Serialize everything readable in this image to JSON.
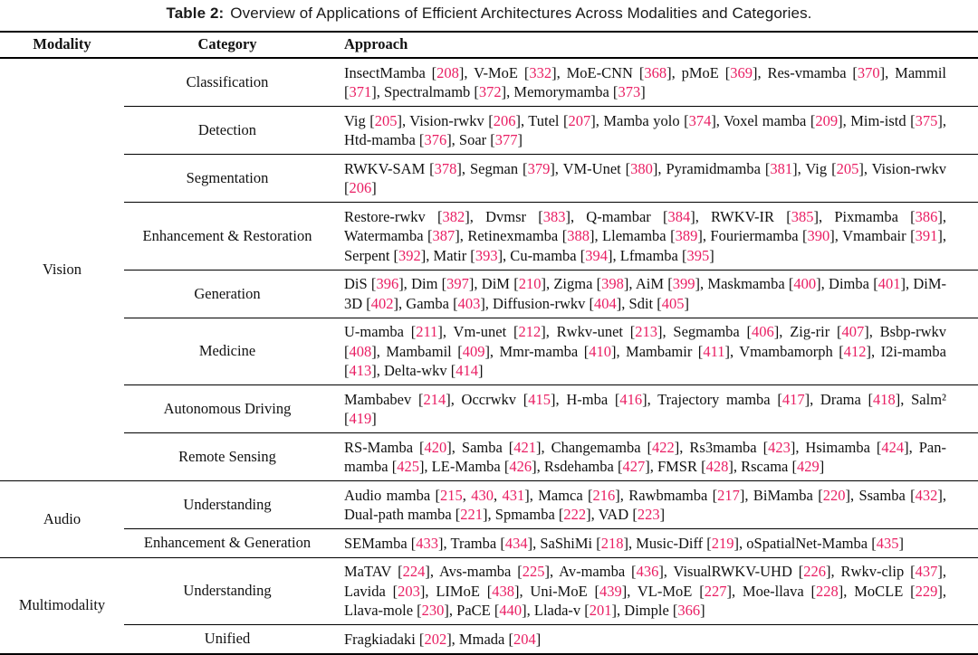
{
  "caption": {
    "label": "Table 2:",
    "text": "Overview of Applications of Efficient Architectures Across Modalities and Categories."
  },
  "colors": {
    "citation": "#E91E63",
    "rule": "#000000"
  },
  "header": {
    "modality": "Modality",
    "category": "Category",
    "approach": "Approach"
  },
  "sections": [
    {
      "modality": "Vision",
      "rows": [
        {
          "category": "Classification",
          "approach": "InsectMamba [208], V-MoE [332], MoE-CNN [368], pMoE [369], Res-vmamba [370], Mammil [371], Spectralmamb [372], Memorymamba [373]"
        },
        {
          "category": "Detection",
          "approach": "Vig [205], Vision-rwkv [206], Tutel [207], Mamba yolo [374], Voxel mamba [209], Mim-istd [375], Htd-mamba [376], Soar [377]"
        },
        {
          "category": "Segmentation",
          "approach": "RWKV-SAM [378], Segman [379], VM-Unet [380], Pyramidmamba [381], Vig [205], Vision-rwkv [206]"
        },
        {
          "category": "Enhancement & Restoration",
          "approach": "Restore-rwkv [382], Dvmsr [383], Q-mambar [384], RWKV-IR [385], Pixmamba [386], Watermamba [387], Retinexmamba [388], Llemamba [389], Fouriermamba [390], Vmambair [391], Serpent [392], Matir [393], Cu-mamba [394], Lfmamba [395]"
        },
        {
          "category": "Generation",
          "approach": "DiS [396], Dim [397], DiM [210], Zigma [398], AiM [399], Maskmamba [400], Dimba [401], DiM-3D [402], Gamba [403], Diffusion-rwkv [404], Sdit [405]"
        },
        {
          "category": "Medicine",
          "approach": "U-mamba [211], Vm-unet [212], Rwkv-unet [213], Segmamba [406], Zig-rir [407], Bsbp-rwkv [408], Mambamil [409], Mmr-mamba [410], Mambamir [411], Vmambamorph [412], I2i-mamba [413], Delta-wkv [414]"
        },
        {
          "category": "Autonomous Driving",
          "approach": "Mambabev [214], Occrwkv [415], H-mba [416], Trajectory mamba [417], Drama [418], Salm² [419]"
        },
        {
          "category": "Remote Sensing",
          "approach": "RS-Mamba [420], Samba [421], Changemamba [422], Rs3mamba [423], Hsimamba [424], Pan-mamba [425], LE-Mamba [426], Rsdehamba [427], FMSR [428], Rscama [429]"
        }
      ]
    },
    {
      "modality": "Audio",
      "rows": [
        {
          "category": "Understanding",
          "approach": "Audio mamba [215, 430, 431], Mamca [216], Rawbmamba [217], BiMamba [220], Ssamba [432], Dual-path mamba [221], Spmamba [222], VAD [223]"
        },
        {
          "category": "Enhancement & Generation",
          "approach": "SEMamba [433], Tramba [434], SaShiMi [218], Music-Diff [219], oSpatialNet-Mamba [435]"
        }
      ]
    },
    {
      "modality": "Multimodality",
      "rows": [
        {
          "category": "Understanding",
          "approach": "MaTAV [224], Avs-mamba [225], Av-mamba [436], VisualRWKV-UHD [226], Rwkv-clip [437], Lavida [203], LIMoE [438], Uni-MoE [439], VL-MoE [227], Moe-llava [228], MoCLE [229], Llava-mole [230], PaCE [440], Llada-v [201], Dimple [366]"
        },
        {
          "category": "Unified",
          "approach": "Fragkiadaki [202], Mmada [204]"
        }
      ]
    }
  ]
}
